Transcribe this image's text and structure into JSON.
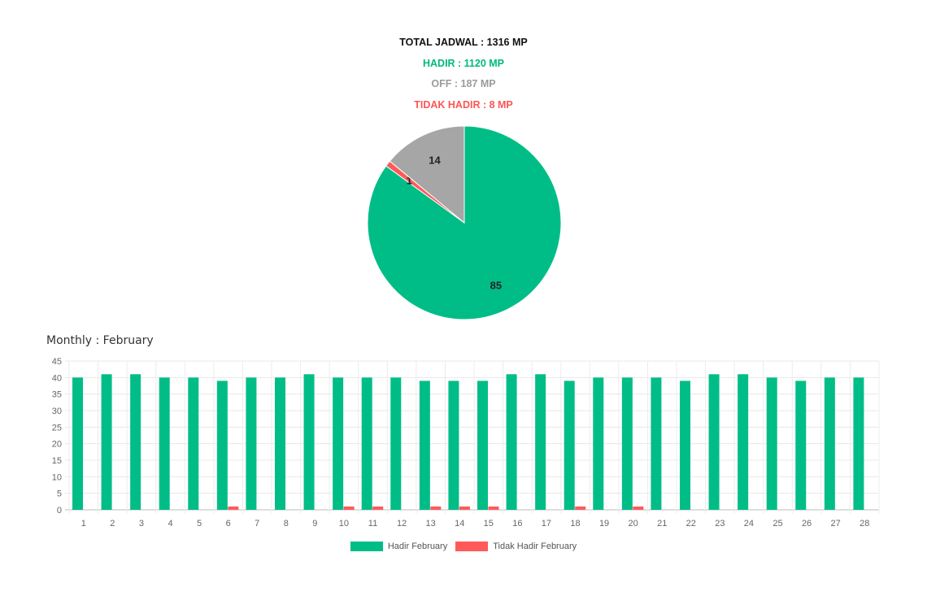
{
  "summary": {
    "total": "TOTAL JADWAL : 1316 MP",
    "hadir": "HADIR : 1120 MP",
    "off": "OFF : 187 MP",
    "tidak_hadir": "TIDAK HADIR : 8 MP"
  },
  "colors": {
    "hadir": "#00bd87",
    "off": "#a6a6a6",
    "tidak_hadir": "#ff5a5a"
  },
  "monthly_title": "Monthly : February",
  "chart_data": [
    {
      "type": "pie",
      "slices": [
        {
          "label": "85",
          "value": 85,
          "color": "#00bd87"
        },
        {
          "label": "1",
          "value": 1,
          "color": "#ff5a5a"
        },
        {
          "label": "14",
          "value": 14,
          "color": "#a6a6a6"
        }
      ]
    },
    {
      "type": "bar",
      "categories": [
        "1",
        "2",
        "3",
        "4",
        "5",
        "6",
        "7",
        "8",
        "9",
        "10",
        "11",
        "12",
        "13",
        "14",
        "15",
        "16",
        "17",
        "18",
        "19",
        "20",
        "21",
        "22",
        "23",
        "24",
        "25",
        "26",
        "27",
        "28"
      ],
      "series": [
        {
          "name": "Hadir February",
          "color": "#00bd87",
          "values": [
            40,
            41,
            41,
            40,
            40,
            39,
            40,
            40,
            41,
            40,
            40,
            40,
            39,
            39,
            39,
            41,
            41,
            39,
            40,
            40,
            40,
            39,
            41,
            41,
            40,
            39,
            40,
            40
          ]
        },
        {
          "name": "Tidak Hadir February",
          "color": "#ff5a5a",
          "values": [
            0,
            0,
            0,
            0,
            0,
            1,
            0,
            0,
            0,
            1,
            1,
            0,
            1,
            1,
            1,
            0,
            0,
            1,
            0,
            1,
            0,
            0,
            0,
            0,
            0,
            0,
            0,
            0
          ]
        }
      ],
      "ylim": [
        0,
        45
      ],
      "yticks": [
        0,
        5,
        10,
        15,
        20,
        25,
        30,
        35,
        40,
        45
      ],
      "grid": true,
      "legend": "bottom"
    }
  ]
}
